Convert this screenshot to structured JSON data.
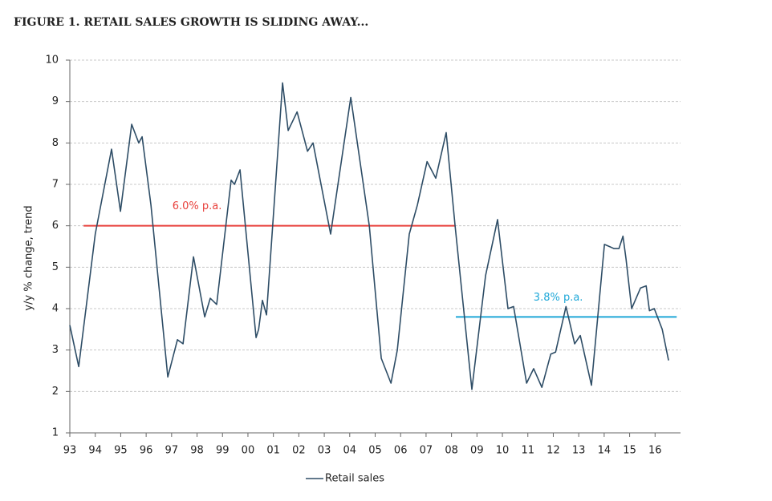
{
  "chart_data": {
    "type": "line",
    "title": "FIGURE 1. RETAIL SALES GROWTH IS SLIDING AWAY...",
    "y_label": "y/y % change, trend",
    "x": [
      1993.0,
      1993.35,
      1994.0,
      1994.64,
      1994.99,
      1995.43,
      1995.71,
      1995.84,
      1996.19,
      1996.85,
      1997.23,
      1997.45,
      1997.86,
      1998.3,
      1998.52,
      1998.77,
      1999.34,
      1999.47,
      1999.69,
      2000.32,
      2000.42,
      2000.57,
      2000.73,
      2001.36,
      2001.58,
      2001.93,
      2002.34,
      2002.56,
      2003.25,
      2004.04,
      2004.77,
      2005.24,
      2005.62,
      2005.87,
      2006.34,
      2006.66,
      2007.04,
      2007.38,
      2007.79,
      2008.14,
      2008.8,
      2009.34,
      2009.81,
      2010.22,
      2010.44,
      2010.95,
      2011.23,
      2011.55,
      2011.9,
      2012.09,
      2012.5,
      2012.84,
      2013.06,
      2013.5,
      2014.01,
      2014.39,
      2014.58,
      2014.74,
      2014.86,
      2015.08,
      2015.43,
      2015.65,
      2015.78,
      2015.97,
      2016.28,
      2016.53
    ],
    "series": [
      {
        "name": "Retail sales",
        "color": "#2e4d66",
        "values": [
          3.6,
          2.6,
          5.8,
          7.85,
          6.35,
          8.45,
          8.0,
          8.15,
          6.5,
          2.35,
          3.25,
          3.15,
          5.25,
          3.8,
          4.25,
          4.1,
          7.1,
          7.0,
          7.35,
          3.3,
          3.5,
          4.2,
          3.85,
          9.45,
          8.3,
          8.75,
          7.8,
          8.0,
          5.8,
          9.1,
          6.0,
          2.8,
          2.2,
          3.0,
          5.8,
          6.5,
          7.55,
          7.15,
          8.25,
          6.0,
          2.05,
          4.8,
          6.15,
          4.0,
          4.05,
          2.2,
          2.55,
          2.1,
          2.9,
          2.95,
          4.05,
          3.15,
          3.35,
          2.15,
          5.55,
          5.45,
          5.45,
          5.75,
          5.2,
          4.0,
          4.5,
          4.55,
          3.95,
          4.0,
          3.5,
          2.75
        ]
      }
    ],
    "averages": [
      {
        "label": "6.0% p.a.",
        "color": "#e8413c",
        "value": 6.0,
        "x": [
          1993.54,
          2008.14
        ]
      },
      {
        "label": "3.8% p.a.",
        "color": "#1fa8d8",
        "value": 3.8,
        "x": [
          2008.17,
          2016.85
        ]
      }
    ],
    "xlim": [
      1993,
      2017
    ],
    "xticks": [
      {
        "value": 1993,
        "label": "93"
      },
      {
        "value": 1994,
        "label": "94"
      },
      {
        "value": 1995,
        "label": "95"
      },
      {
        "value": 1996,
        "label": "96"
      },
      {
        "value": 1997,
        "label": "97"
      },
      {
        "value": 1998,
        "label": "98"
      },
      {
        "value": 1999,
        "label": "99"
      },
      {
        "value": 2000,
        "label": "00"
      },
      {
        "value": 2001,
        "label": "01"
      },
      {
        "value": 2002,
        "label": "02"
      },
      {
        "value": 2003,
        "label": "03"
      },
      {
        "value": 2004,
        "label": "04"
      },
      {
        "value": 2005,
        "label": "05"
      },
      {
        "value": 2006,
        "label": "06"
      },
      {
        "value": 2007,
        "label": "07"
      },
      {
        "value": 2008,
        "label": "08"
      },
      {
        "value": 2009,
        "label": "09"
      },
      {
        "value": 2010,
        "label": "10"
      },
      {
        "value": 2011,
        "label": "11"
      },
      {
        "value": 2012,
        "label": "12"
      },
      {
        "value": 2013,
        "label": "13"
      },
      {
        "value": 2014,
        "label": "14"
      },
      {
        "value": 2015,
        "label": "15"
      },
      {
        "value": 2016,
        "label": "16"
      }
    ],
    "ylim": [
      1,
      10
    ],
    "yticks": [
      1,
      2,
      3,
      4,
      5,
      6,
      7,
      8,
      9,
      10
    ],
    "grid": true
  }
}
